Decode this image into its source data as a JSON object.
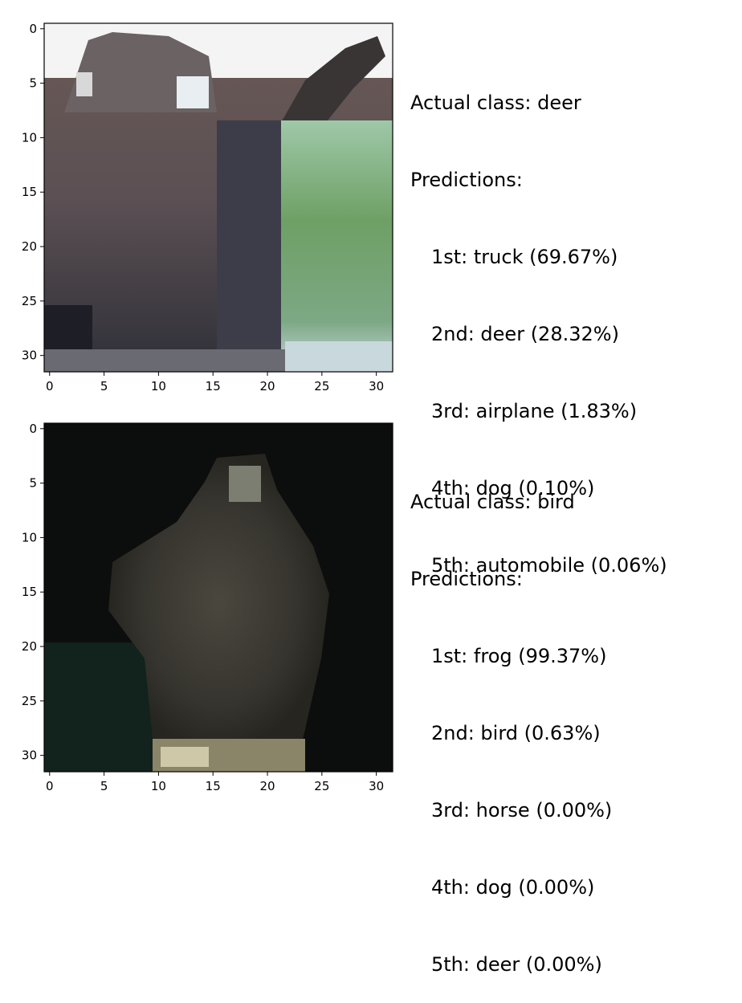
{
  "panels": [
    {
      "actual_label": "Actual class: deer",
      "predictions_label": "Predictions:",
      "predictions": [
        "1st: truck (69.67%)",
        "2nd: deer (28.32%)",
        "3rd: airplane (1.83%)",
        "4th: dog (0.10%)",
        "5th: automobile (0.06%)"
      ]
    },
    {
      "actual_label": "Actual class: bird",
      "predictions_label": "Predictions:",
      "predictions": [
        "1st: frog (99.37%)",
        "2nd: bird (0.63%)",
        "3rd: horse (0.00%)",
        "4th: dog (0.00%)",
        "5th: deer (0.00%)"
      ]
    }
  ],
  "chart_data": [
    {
      "type": "heatmap",
      "x_ticks": [
        0,
        5,
        10,
        15,
        20,
        25,
        30
      ],
      "y_ticks": [
        0,
        5,
        10,
        15,
        20,
        25,
        30
      ],
      "xlim": [
        -0.5,
        31.5
      ],
      "ylim": [
        31.5,
        -0.5
      ],
      "grid": false
    },
    {
      "type": "heatmap",
      "x_ticks": [
        0,
        5,
        10,
        15,
        20,
        25,
        30
      ],
      "y_ticks": [
        0,
        5,
        10,
        15,
        20,
        25,
        30
      ],
      "xlim": [
        -0.5,
        31.5
      ],
      "ylim": [
        31.5,
        -0.5
      ],
      "grid": false
    }
  ]
}
